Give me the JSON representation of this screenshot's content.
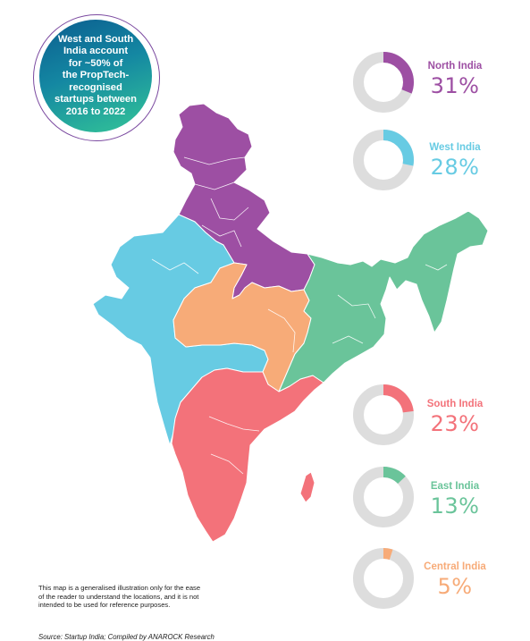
{
  "callout": {
    "text": "West and South\nIndia account\nfor ~50% of\nthe PropTech-\nrecognised\nstartups between\n2016 to 2022"
  },
  "regions": [
    {
      "name": "North India",
      "percent_label": "31%",
      "share": 0.31,
      "color": "#9d4fa3"
    },
    {
      "name": "West India",
      "percent_label": "28%",
      "share": 0.28,
      "color": "#67cbe3"
    },
    {
      "name": "South India",
      "percent_label": "23%",
      "share": 0.23,
      "color": "#f3727a"
    },
    {
      "name": "East India",
      "percent_label": "13%",
      "share": 0.13,
      "color": "#6ac49a"
    },
    {
      "name": "Central India",
      "percent_label": "5%",
      "share": 0.05,
      "color": "#f7ab78"
    }
  ],
  "donut_track_color": "#dddddd",
  "disclaimer": "This map is a generalised illustration only for the ease\nof the reader to understand the locations, and it is not\nintended to be used for reference purposes.",
  "source": "Source: Startup India; Compiled by ANAROCK Research"
}
